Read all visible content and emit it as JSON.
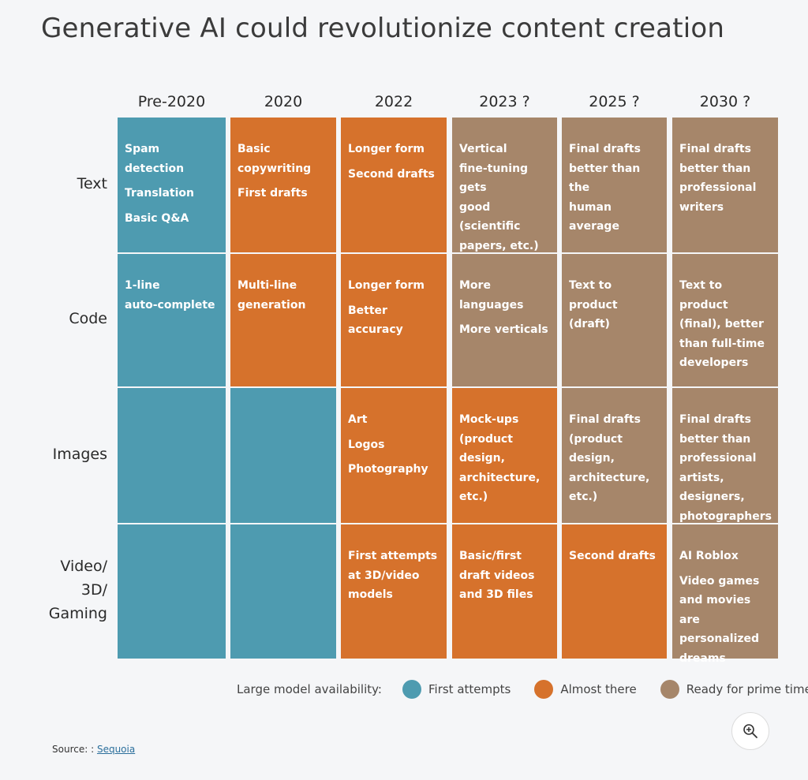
{
  "title": "Generative AI could revolutionize content creation",
  "columns": [
    "Pre-2020",
    "2020",
    "2022",
    "2023 ?",
    "2025 ?",
    "2030 ?"
  ],
  "rows": [
    {
      "label_lines": [
        "Text"
      ],
      "cells": [
        {
          "status": "blue",
          "items": [
            [
              "Spam detection"
            ],
            [
              "Translation"
            ],
            [
              "Basic Q&A"
            ]
          ]
        },
        {
          "status": "orange",
          "items": [
            [
              "Basic copywriting"
            ],
            [
              "First drafts"
            ]
          ]
        },
        {
          "status": "orange",
          "items": [
            [
              "Longer form"
            ],
            [
              "Second drafts"
            ]
          ]
        },
        {
          "status": "brown",
          "items": [
            [
              "Vertical",
              "fine-tuning gets",
              "good (scientific",
              "papers, etc.)"
            ]
          ]
        },
        {
          "status": "brown",
          "items": [
            [
              "Final drafts",
              "better than the",
              "human average"
            ]
          ]
        },
        {
          "status": "brown",
          "items": [
            [
              "Final drafts",
              "better than",
              "professional",
              "writers"
            ]
          ]
        }
      ]
    },
    {
      "label_lines": [
        "Code"
      ],
      "cells": [
        {
          "status": "blue",
          "items": [
            [
              "1-line",
              "auto-complete"
            ]
          ]
        },
        {
          "status": "orange",
          "items": [
            [
              "Multi-line",
              "generation"
            ]
          ]
        },
        {
          "status": "orange",
          "items": [
            [
              "Longer form"
            ],
            [
              "Better accuracy"
            ]
          ]
        },
        {
          "status": "brown",
          "items": [
            [
              "More languages"
            ],
            [
              "More verticals"
            ]
          ]
        },
        {
          "status": "brown",
          "items": [
            [
              "Text to product",
              "(draft)"
            ]
          ]
        },
        {
          "status": "brown",
          "items": [
            [
              "Text to product",
              "(final), better",
              "than full-time",
              "developers"
            ]
          ]
        }
      ]
    },
    {
      "label_lines": [
        "Images"
      ],
      "cells": [
        {
          "status": "blue",
          "items": []
        },
        {
          "status": "blue",
          "items": []
        },
        {
          "status": "orange",
          "items": [
            [
              "Art"
            ],
            [
              "Logos"
            ],
            [
              "Photography"
            ]
          ]
        },
        {
          "status": "orange",
          "items": [
            [
              "Mock-ups",
              "(product design,",
              "architecture,",
              "etc.)"
            ]
          ]
        },
        {
          "status": "brown",
          "items": [
            [
              "Final drafts",
              "(product design,",
              "architecture,",
              "etc.)"
            ]
          ]
        },
        {
          "status": "brown",
          "items": [
            [
              "Final drafts",
              "better than",
              "professional",
              "artists,",
              "designers,",
              "photographers"
            ]
          ]
        }
      ]
    },
    {
      "label_lines": [
        "Video/",
        "3D/",
        "Gaming"
      ],
      "cells": [
        {
          "status": "blue",
          "items": []
        },
        {
          "status": "blue",
          "items": []
        },
        {
          "status": "orange",
          "items": [
            [
              "First attempts",
              "at 3D/video",
              "models"
            ]
          ]
        },
        {
          "status": "orange",
          "items": [
            [
              "Basic/first",
              "draft videos",
              "and 3D files"
            ]
          ]
        },
        {
          "status": "orange",
          "items": [
            [
              "Second drafts"
            ]
          ]
        },
        {
          "status": "brown",
          "items": [
            [
              "AI Roblox"
            ],
            [
              "Video games",
              "and movies are",
              "personalized",
              "dreams"
            ]
          ]
        }
      ]
    }
  ],
  "legend": {
    "title": "Large model availability:",
    "entries": [
      {
        "label": "First attempts",
        "color": "#4e9bb0"
      },
      {
        "label": "Almost there",
        "color": "#d6722c"
      },
      {
        "label": "Ready for prime time",
        "color": "#a6866a"
      }
    ]
  },
  "zoom_button": {
    "icon": "zoom-in-icon"
  },
  "source": {
    "prefix": "Source: :",
    "link_text": "Sequoia"
  }
}
